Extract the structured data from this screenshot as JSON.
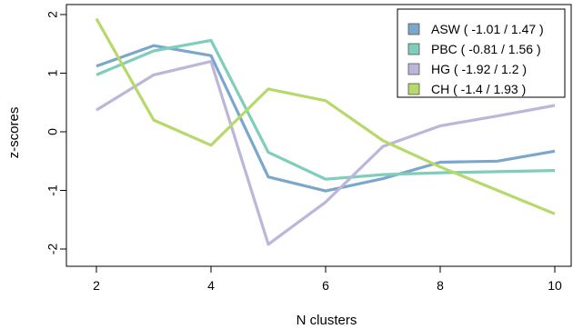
{
  "chart_data": {
    "type": "line",
    "title": "",
    "xlabel": "N clusters",
    "ylabel": "z-scores",
    "xlim": [
      2,
      10
    ],
    "ylim": [
      -2,
      2
    ],
    "x_ticks": [
      "2",
      "4",
      "6",
      "8",
      "10"
    ],
    "y_ticks": [
      "-2",
      "-1",
      "0",
      "1",
      "2"
    ],
    "grid": false,
    "legend_position": "top-right",
    "x": [
      2,
      3,
      4,
      5,
      6,
      7,
      8,
      9,
      10
    ],
    "series": [
      {
        "name": "ASW ( -1.01 / 1.47 )",
        "color": "#7ba7cc",
        "values": [
          1.12,
          1.47,
          1.3,
          -0.77,
          -1.01,
          -0.8,
          -0.52,
          -0.5,
          -0.33
        ]
      },
      {
        "name": "PBC ( -0.81 / 1.56 )",
        "color": "#7fcdbb",
        "values": [
          0.97,
          1.38,
          1.56,
          -0.35,
          -0.81,
          -0.73,
          -0.7,
          -0.68,
          -0.66
        ]
      },
      {
        "name": "HG ( -1.92 / 1.2 )",
        "color": "#bcb6da",
        "values": [
          0.37,
          0.97,
          1.2,
          -1.92,
          -1.2,
          -0.25,
          0.1,
          0.27,
          0.45
        ]
      },
      {
        "name": "CH ( -1.4 / 1.93 )",
        "color": "#b6d96a",
        "values": [
          1.93,
          0.2,
          -0.23,
          0.73,
          0.53,
          -0.15,
          -0.6,
          -1.0,
          -1.4
        ]
      }
    ]
  }
}
